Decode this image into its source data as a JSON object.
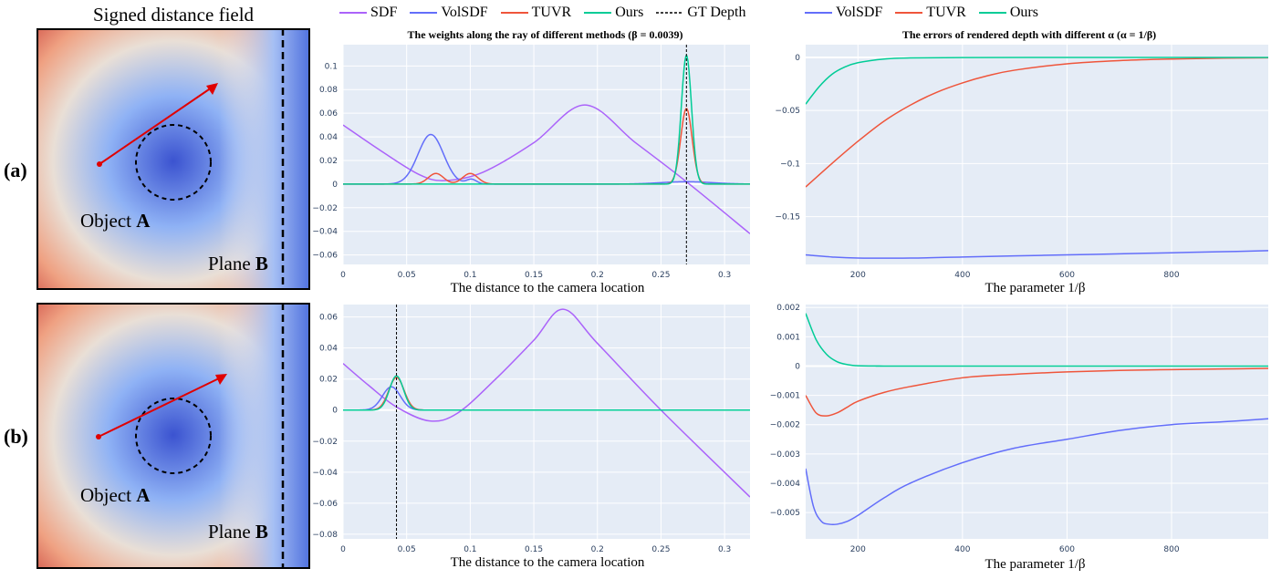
{
  "left_column": {
    "title": "Signed distance field",
    "row_a_label": "(a)",
    "row_b_label": "(b)",
    "object_label": "Object",
    "object_letter": "A",
    "plane_label": "Plane",
    "plane_letter": "B"
  },
  "middle_column": {
    "title": "The weights along the ray of different methods (β = 0.0039)",
    "xlabel": "The distance to the camera location",
    "legend": [
      {
        "name": "SDF",
        "color": "#ab63fa",
        "dash": false
      },
      {
        "name": "VolSDF",
        "color": "#636efa",
        "dash": false
      },
      {
        "name": "TUVR",
        "color": "#ef553b",
        "dash": false
      },
      {
        "name": "Ours",
        "color": "#00cc96",
        "dash": false
      },
      {
        "name": "GT Depth",
        "color": "#000000",
        "dash": true
      }
    ]
  },
  "right_column": {
    "title": "The errors of rendered depth with different α (α = 1/β)",
    "xlabel": "The parameter 1/β",
    "legend": [
      {
        "name": "VolSDF",
        "color": "#636efa"
      },
      {
        "name": "TUVR",
        "color": "#ef553b"
      },
      {
        "name": "Ours",
        "color": "#00cc96"
      }
    ]
  },
  "chart_data": [
    {
      "id": "weights_a",
      "type": "line",
      "xlim": [
        0,
        0.32
      ],
      "ylim": [
        -0.068,
        0.118
      ],
      "xticks": [
        0,
        0.05,
        0.1,
        0.15,
        0.2,
        0.25,
        0.3
      ],
      "xtick_labels": [
        "0",
        "0.05",
        "0.1",
        "0.15",
        "0.2",
        "0.25",
        "0.3"
      ],
      "yticks": [
        -0.06,
        -0.04,
        -0.02,
        0,
        0.02,
        0.04,
        0.06,
        0.08,
        0.1
      ],
      "ytick_labels": [
        "−0.06",
        "−0.04",
        "−0.02",
        "0",
        "0.02",
        "0.04",
        "0.06",
        "0.08",
        "0.1"
      ],
      "vline": 0.27,
      "series": [
        {
          "name": "SDF",
          "color": "#ab63fa",
          "x": [
            0,
            0.03,
            0.06,
            0.08,
            0.11,
            0.15,
            0.19,
            0.23,
            0.27,
            0.32
          ],
          "y": [
            0.05,
            0.028,
            0.008,
            0.003,
            0.01,
            0.035,
            0.067,
            0.035,
            0.002,
            -0.042
          ]
        },
        {
          "name": "VolSDF",
          "color": "#636efa",
          "peaks": [
            {
              "c": 0.069,
              "h": 0.042,
              "w": 0.01
            },
            {
              "c": 0.101,
              "h": 0.004,
              "w": 0.004
            },
            {
              "c": 0.27,
              "h": 0.002,
              "w": 0.02
            }
          ],
          "x": [
            0,
            0.32
          ]
        },
        {
          "name": "TUVR",
          "color": "#ef553b",
          "peaks": [
            {
              "c": 0.073,
              "h": 0.009,
              "w": 0.006
            },
            {
              "c": 0.1,
              "h": 0.009,
              "w": 0.006
            },
            {
              "c": 0.27,
              "h": 0.064,
              "w": 0.0045
            }
          ],
          "x": [
            0,
            0.32
          ]
        },
        {
          "name": "Ours",
          "color": "#00cc96",
          "peaks": [
            {
              "c": 0.27,
              "h": 0.109,
              "w": 0.004
            }
          ],
          "x": [
            0,
            0.32
          ]
        }
      ]
    },
    {
      "id": "weights_b",
      "type": "line",
      "xlim": [
        0,
        0.32
      ],
      "ylim": [
        -0.083,
        0.068
      ],
      "xticks": [
        0,
        0.05,
        0.1,
        0.15,
        0.2,
        0.25,
        0.3
      ],
      "xtick_labels": [
        "0",
        "0.05",
        "0.1",
        "0.15",
        "0.2",
        "0.25",
        "0.3"
      ],
      "yticks": [
        -0.08,
        -0.06,
        -0.04,
        -0.02,
        0,
        0.02,
        0.04,
        0.06
      ],
      "ytick_labels": [
        "−0.08",
        "−0.06",
        "−0.04",
        "−0.02",
        "0",
        "0.02",
        "0.04",
        "0.06"
      ],
      "vline": 0.042,
      "series": [
        {
          "name": "SDF",
          "color": "#ab63fa",
          "x": [
            0,
            0.02,
            0.042,
            0.068,
            0.09,
            0.12,
            0.15,
            0.173,
            0.2,
            0.25,
            0.32
          ],
          "y": [
            0.03,
            0.016,
            0.002,
            -0.007,
            -0.002,
            0.02,
            0.045,
            0.065,
            0.043,
            0.0,
            -0.056
          ]
        },
        {
          "name": "VolSDF",
          "color": "#636efa",
          "peaks": [
            {
              "c": 0.038,
              "h": 0.015,
              "w": 0.007
            }
          ],
          "x": [
            0,
            0.32
          ]
        },
        {
          "name": "TUVR",
          "color": "#ef553b",
          "peaks": [
            {
              "c": 0.042,
              "h": 0.021,
              "w": 0.006
            }
          ],
          "x": [
            0,
            0.32
          ]
        },
        {
          "name": "Ours",
          "color": "#00cc96",
          "peaks": [
            {
              "c": 0.042,
              "h": 0.022,
              "w": 0.0055
            }
          ],
          "x": [
            0,
            0.32
          ]
        }
      ]
    },
    {
      "id": "errors_a",
      "type": "line",
      "xlim": [
        100,
        985
      ],
      "ylim": [
        -0.195,
        0.012
      ],
      "xticks": [
        200,
        400,
        600,
        800
      ],
      "xtick_labels": [
        "200",
        "400",
        "600",
        "800"
      ],
      "yticks": [
        -0.15,
        -0.1,
        -0.05,
        0
      ],
      "ytick_labels": [
        "−0.15",
        "−0.1",
        "−0.05",
        "0"
      ],
      "series": [
        {
          "name": "VolSDF",
          "color": "#636efa",
          "x": [
            100,
            150,
            200,
            300,
            400,
            500,
            600,
            700,
            800,
            900,
            985
          ],
          "y": [
            -0.186,
            -0.188,
            -0.189,
            -0.189,
            -0.188,
            -0.187,
            -0.186,
            -0.185,
            -0.184,
            -0.183,
            -0.182
          ]
        },
        {
          "name": "TUVR",
          "color": "#ef553b",
          "x": [
            100,
            150,
            200,
            250,
            300,
            350,
            400,
            450,
            500,
            600,
            700,
            800,
            900,
            985
          ],
          "y": [
            -0.122,
            -0.1,
            -0.079,
            -0.06,
            -0.045,
            -0.033,
            -0.024,
            -0.017,
            -0.012,
            -0.006,
            -0.003,
            -0.0015,
            -0.0007,
            -0.0003
          ]
        },
        {
          "name": "Ours",
          "color": "#00cc96",
          "x": [
            100,
            125,
            150,
            175,
            200,
            250,
            300,
            400,
            600,
            800,
            985
          ],
          "y": [
            -0.044,
            -0.028,
            -0.016,
            -0.009,
            -0.005,
            -0.0015,
            -0.0005,
            -0.0001,
            0,
            0,
            0
          ]
        }
      ]
    },
    {
      "id": "errors_b",
      "type": "line",
      "xlim": [
        100,
        985
      ],
      "ylim": [
        -0.0059,
        0.0021
      ],
      "xticks": [
        200,
        400,
        600,
        800
      ],
      "xtick_labels": [
        "200",
        "400",
        "600",
        "800"
      ],
      "yticks": [
        -0.005,
        -0.004,
        -0.003,
        -0.002,
        -0.001,
        0,
        0.001,
        0.002
      ],
      "ytick_labels": [
        "−0.005",
        "−0.004",
        "−0.003",
        "−0.002",
        "−0.001",
        "0",
        "0.001",
        "0.002"
      ],
      "series": [
        {
          "name": "VolSDF",
          "color": "#636efa",
          "x": [
            100,
            115,
            130,
            145,
            160,
            180,
            200,
            250,
            300,
            400,
            500,
            600,
            700,
            800,
            900,
            985
          ],
          "y": [
            -0.0035,
            -0.0048,
            -0.0053,
            -0.0054,
            -0.0054,
            -0.0053,
            -0.0051,
            -0.0045,
            -0.004,
            -0.0033,
            -0.0028,
            -0.0025,
            -0.0022,
            -0.002,
            -0.0019,
            -0.0018
          ]
        },
        {
          "name": "TUVR",
          "color": "#ef553b",
          "x": [
            100,
            120,
            140,
            160,
            180,
            200,
            250,
            300,
            400,
            500,
            600,
            700,
            800,
            900,
            985
          ],
          "y": [
            -0.001,
            -0.0016,
            -0.0017,
            -0.0016,
            -0.0014,
            -0.0012,
            -0.0009,
            -0.0007,
            -0.0004,
            -0.00028,
            -0.0002,
            -0.00015,
            -0.00012,
            -0.0001,
            -8e-05
          ]
        },
        {
          "name": "Ours",
          "color": "#00cc96",
          "x": [
            100,
            120,
            140,
            160,
            180,
            200,
            250,
            300,
            985
          ],
          "y": [
            0.0018,
            0.0009,
            0.0004,
            0.00015,
            5e-05,
            1e-05,
            0,
            0,
            0
          ]
        }
      ]
    }
  ]
}
